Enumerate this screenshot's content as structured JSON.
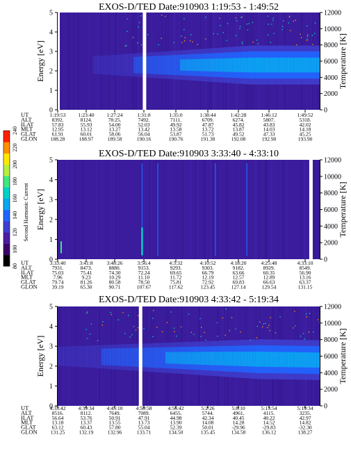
{
  "colorbar": {
    "ticks": [
      "240",
      "220",
      "200",
      "180",
      "160",
      "140",
      "120",
      "100",
      "80"
    ],
    "label": "Second Harmonic Current",
    "colors": [
      "#000000",
      "#3d006b",
      "#4a1ea0",
      "#3f3fcf",
      "#1f66ff",
      "#0aa6f0",
      "#00d2c8",
      "#44e680",
      "#b6f040",
      "#ffe800",
      "#ff9000",
      "#ff2000"
    ]
  },
  "chart_data": [
    {
      "type": "heatmap",
      "title": "EXOS-D/TED   Date:910903  1:19:53 - 1:49:52",
      "ylabel": "Energy [eV]",
      "y2label": "Temperature [K]",
      "ylim": [
        0,
        5
      ],
      "y2lim": [
        0,
        12000
      ],
      "yticks": [
        "0",
        "1",
        "2",
        "3",
        "4",
        "5"
      ],
      "y2ticks": [
        "0",
        "2000",
        "4000",
        "6000",
        "8000",
        "10000",
        "12000"
      ],
      "band": {
        "center_eV": [
          2.3,
          2.3
        ],
        "start_fraction": 0.25,
        "peak_fraction": 0.75,
        "gaps": [
          0.0,
          0.33
        ]
      },
      "ephemeris": {
        "rows": [
          "UT",
          "ALT",
          "ILAT",
          "MLT",
          "GLAT",
          "GLON"
        ],
        "columns": [
          [
            "1:19:53",
            "8392.",
            "57.83",
            "12.95",
            "61.91",
            "188.28"
          ],
          [
            "1:23:40",
            "8124.",
            "55.93",
            "13.12",
            "60.01",
            "188.97"
          ],
          [
            "1:27:24",
            "78:25.",
            "54.00",
            "13.27",
            "58.06",
            "189.58"
          ],
          [
            "1:31:8",
            "7492.",
            "52.03",
            "13.42",
            "56.04",
            "190.16"
          ],
          [
            "1:35:0",
            "7111.",
            "49.92",
            "13.58",
            "53.87",
            "190.76"
          ],
          [
            "1:38:44",
            "6709.",
            "47.87",
            "13.72",
            "51.73",
            "191.38"
          ],
          [
            "1:42:28",
            "6274.",
            "45.82",
            "13.87",
            "49.52",
            "192.08"
          ],
          [
            "1:46:12",
            "5807.",
            "43.83",
            "14.03",
            "47.33",
            "192.90"
          ],
          [
            "1:49:52",
            "5318.",
            "42.02",
            "14.18",
            "45.25",
            "193.90"
          ]
        ]
      }
    },
    {
      "type": "heatmap",
      "title": "EXOS-D/TED   Date:910903  3:33:40 - 4:33:10",
      "ylabel": "Energy [eV]",
      "y2label": "Temperature [K]",
      "ylim": [
        0,
        5
      ],
      "y2lim": [
        0,
        12000
      ],
      "yticks": [
        "0",
        "1",
        "2",
        "3",
        "4",
        "5"
      ],
      "y2ticks": [
        "0",
        "2000",
        "4000",
        "6000",
        "8000",
        "10000",
        "12000"
      ],
      "band": null,
      "spikes": [
        0.32,
        0.38,
        0.6,
        0.72
      ],
      "gaps": [
        0.96
      ],
      "ephemeris": {
        "rows": [
          "UT",
          "ALT",
          "ILAT",
          "MLT",
          "GLAT",
          "GLON"
        ],
        "columns": [
          [
            "3:33:40",
            "7931.",
            "75.03",
            "7.96",
            "79.74",
            "39.19"
          ],
          [
            "3:41:8",
            "8473.",
            "75.41",
            "9.23",
            "81.26",
            "65.30"
          ],
          [
            "3:48:26",
            "8880.",
            "74.30",
            "10.29",
            "80.58",
            "90.71"
          ],
          [
            "3:56:4",
            "9153.",
            "72.24",
            "11.10",
            "78.50",
            "107.67"
          ],
          [
            "4:3:32",
            "9293.",
            "69.65",
            "11.72",
            "75.81",
            "117.62"
          ],
          [
            "4:10:52",
            "9303.",
            "66.79",
            "12.19",
            "72.92",
            "123.45"
          ],
          [
            "4:18:20",
            "9182.",
            "63.66",
            "12.57",
            "69.83",
            "127.14"
          ],
          [
            "4:25:48",
            "8929.",
            "60.35",
            "12.89",
            "66.63",
            "129.54"
          ],
          [
            "4:33:10",
            "8549.",
            "56.90",
            "13.16",
            "63.37",
            "131.15"
          ]
        ]
      }
    },
    {
      "type": "heatmap",
      "title": "EXOS-D/TED   Date:910903  4:33:42 - 5:19:34",
      "ylabel": "Energy [eV]",
      "y2label": "Temperature [K]",
      "ylim": [
        0,
        5
      ],
      "y2lim": [
        0,
        12000
      ],
      "yticks": [
        "0",
        "1",
        "2",
        "3",
        "4",
        "5"
      ],
      "y2ticks": [
        "0",
        "2000",
        "4000",
        "6000",
        "8000",
        "10000",
        "12000"
      ],
      "band": {
        "center_eV": [
          2.5,
          2.3
        ],
        "start_fraction": 0.08,
        "peak_fraction": 0.78,
        "gaps": [
          0.315
        ]
      },
      "ephemeris": {
        "rows": [
          "UT",
          "ALT",
          "ILAT",
          "MLT",
          "GLAT",
          "GLON"
        ],
        "columns": [
          [
            "4:33:42",
            "8516.",
            "56.64",
            "13.18",
            "63.12",
            "131.25"
          ],
          [
            "4:39:34",
            "8112.",
            "53.76",
            "13.37",
            "60.43",
            "132.19"
          ],
          [
            "4:45:10",
            "7649.",
            "50.91",
            "13.55",
            "57.80",
            "132.96"
          ],
          [
            "4:50:58",
            "7089.",
            "47.91",
            "13.73",
            "55.04",
            "133.71"
          ],
          [
            "4:56:42",
            "6455.",
            "44.98",
            "13.90",
            "52.39",
            "134.50"
          ],
          [
            "5:2:26",
            "5744.",
            "42.34",
            "14.08",
            "50.01",
            "135.45"
          ],
          [
            "5:8:10",
            "4961.",
            "40.45",
            "14.28",
            "-29.96",
            "134.58"
          ],
          [
            "5:13:54",
            "4115.",
            "40.22",
            "14.52",
            "-29.83",
            "136.12"
          ],
          [
            "5:19:34",
            "3235.",
            "42.97",
            "14.82",
            "-32.30",
            "138.27"
          ]
        ]
      }
    }
  ]
}
